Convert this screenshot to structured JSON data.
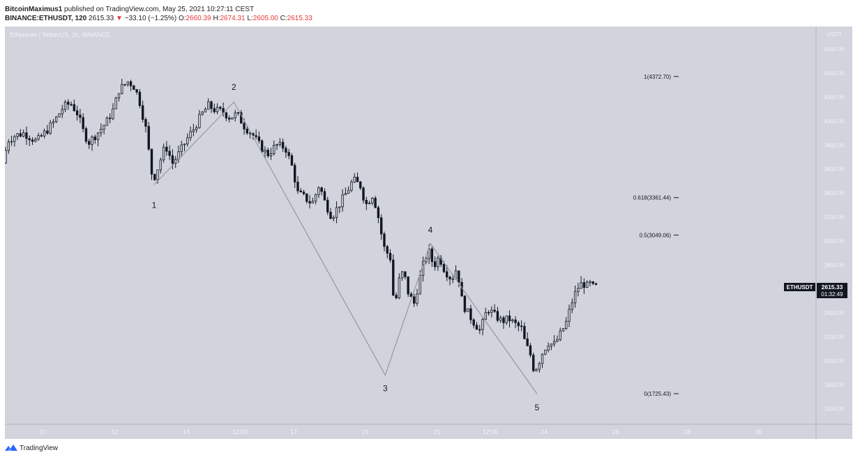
{
  "header": {
    "author": "BitcoinMaximus1",
    "published_text": "published on TradingView.com, May 25, 2021 10:27:11 CEST",
    "symbol": "BINANCE:ETHUSDT, 120",
    "last": "2615.33",
    "change_arrow": "▼",
    "change": "−33.10 (−1.25%)",
    "o_label": "O:",
    "o_value": "2660.39",
    "h_label": "H:",
    "h_value": "2674.31",
    "l_label": "L:",
    "l_value": "2605.00",
    "c_label": "C:",
    "c_value": "2615.33"
  },
  "chart_data": {
    "type": "candlestick",
    "pane_title": "Ethereum / TetherUS, 2h, BINANCE",
    "currency_label": "USDT",
    "y_ticks": [
      1600,
      1800,
      2000,
      2200,
      2400,
      2600,
      2800,
      3000,
      3200,
      3400,
      3600,
      3800,
      4000,
      4200,
      4400,
      4600
    ],
    "y_tick_labels": [
      "1600.00",
      "1800.00",
      "2000.00",
      "2200.00",
      "2400.00",
      "2600.00",
      "2800.00",
      "3000.00",
      "3200.00",
      "3400.00",
      "3600.00",
      "3800.00",
      "4000.00",
      "4200.00",
      "4400.00",
      "4600.00"
    ],
    "ylim": [
      1470,
      4790
    ],
    "x_ticks": [
      {
        "day": 10,
        "label": "10"
      },
      {
        "day": 12,
        "label": "12"
      },
      {
        "day": 14,
        "label": "14"
      },
      {
        "day": 15.5,
        "label": "12:00"
      },
      {
        "day": 17,
        "label": "17"
      },
      {
        "day": 19,
        "label": "19"
      },
      {
        "day": 21,
        "label": "21"
      },
      {
        "day": 22.5,
        "label": "12:00"
      },
      {
        "day": 24,
        "label": "24"
      },
      {
        "day": 26,
        "label": "26"
      },
      {
        "day": 28,
        "label": "28"
      },
      {
        "day": 30,
        "label": "30"
      }
    ],
    "xlim": [
      8.93,
      31.6
    ],
    "price_path": [
      [
        8.95,
        3650
      ],
      [
        9.1,
        3840
      ],
      [
        9.3,
        3880
      ],
      [
        9.55,
        3900
      ],
      [
        9.75,
        3860
      ],
      [
        9.9,
        3830
      ],
      [
        10.15,
        3910
      ],
      [
        10.4,
        4000
      ],
      [
        10.65,
        4120
      ],
      [
        10.85,
        4150
      ],
      [
        11.05,
        4060
      ],
      [
        11.2,
        3920
      ],
      [
        11.35,
        3820
      ],
      [
        11.6,
        3900
      ],
      [
        11.85,
        3990
      ],
      [
        12.05,
        4100
      ],
      [
        12.2,
        4260
      ],
      [
        12.45,
        4330
      ],
      [
        12.6,
        4300
      ],
      [
        12.75,
        4200
      ],
      [
        12.95,
        3940
      ],
      [
        13.1,
        3600
      ],
      [
        13.15,
        3500
      ],
      [
        13.3,
        3620
      ],
      [
        13.5,
        3800
      ],
      [
        13.7,
        3650
      ],
      [
        13.9,
        3740
      ],
      [
        14.1,
        3850
      ],
      [
        14.3,
        3940
      ],
      [
        14.5,
        4050
      ],
      [
        14.7,
        4130
      ],
      [
        14.9,
        4090
      ],
      [
        15.1,
        4080
      ],
      [
        15.3,
        4030
      ],
      [
        15.5,
        4060
      ],
      [
        15.7,
        3960
      ],
      [
        15.95,
        3880
      ],
      [
        16.15,
        3790
      ],
      [
        16.35,
        3720
      ],
      [
        16.6,
        3800
      ],
      [
        16.85,
        3780
      ],
      [
        17.05,
        3610
      ],
      [
        17.2,
        3400
      ],
      [
        17.4,
        3360
      ],
      [
        17.6,
        3310
      ],
      [
        17.8,
        3470
      ],
      [
        17.95,
        3330
      ],
      [
        18.15,
        3200
      ],
      [
        18.35,
        3300
      ],
      [
        18.55,
        3400
      ],
      [
        18.75,
        3510
      ],
      [
        18.95,
        3460
      ],
      [
        19.1,
        3300
      ],
      [
        19.3,
        3390
      ],
      [
        19.45,
        3200
      ],
      [
        19.6,
        2950
      ],
      [
        19.8,
        2850
      ],
      [
        19.9,
        2400
      ],
      [
        20.0,
        2650
      ],
      [
        20.15,
        2750
      ],
      [
        20.3,
        2550
      ],
      [
        20.45,
        2480
      ],
      [
        20.6,
        2680
      ],
      [
        20.75,
        2850
      ],
      [
        20.85,
        2920
      ],
      [
        21.0,
        2790
      ],
      [
        21.15,
        2870
      ],
      [
        21.3,
        2760
      ],
      [
        21.5,
        2680
      ],
      [
        21.65,
        2780
      ],
      [
        21.8,
        2480
      ],
      [
        21.95,
        2400
      ],
      [
        22.1,
        2330
      ],
      [
        22.3,
        2250
      ],
      [
        22.5,
        2440
      ],
      [
        22.7,
        2380
      ],
      [
        22.9,
        2330
      ],
      [
        23.1,
        2350
      ],
      [
        23.25,
        2310
      ],
      [
        23.45,
        2270
      ],
      [
        23.55,
        2150
      ],
      [
        23.7,
        2050
      ],
      [
        23.8,
        1920
      ],
      [
        23.9,
        1960
      ],
      [
        24.05,
        2080
      ],
      [
        24.2,
        2150
      ],
      [
        24.35,
        2130
      ],
      [
        24.5,
        2200
      ],
      [
        24.7,
        2320
      ],
      [
        24.85,
        2480
      ],
      [
        25.0,
        2600
      ],
      [
        25.15,
        2650
      ],
      [
        25.3,
        2620
      ],
      [
        25.4,
        2650
      ],
      [
        25.45,
        2615
      ]
    ],
    "wave_line": [
      [
        13.1,
        3470
      ],
      [
        15.33,
        4160
      ],
      [
        19.56,
        1880
      ],
      [
        20.82,
        2980
      ],
      [
        23.8,
        1725
      ]
    ],
    "wave_labels": [
      {
        "text": "1",
        "day": 13.1,
        "price": 3310,
        "above": false
      },
      {
        "text": "2",
        "day": 15.33,
        "price": 4260,
        "above": true
      },
      {
        "text": "3",
        "day": 19.56,
        "price": 1780,
        "above": false
      },
      {
        "text": "4",
        "day": 20.82,
        "price": 3070,
        "above": true
      },
      {
        "text": "5",
        "day": 23.8,
        "price": 1620,
        "above": false
      }
    ],
    "fib_levels": [
      {
        "ratio": "1",
        "price": 4372.7,
        "label": "1(4372.70)"
      },
      {
        "ratio": "0.618",
        "price": 3361.44,
        "label": "0.618(3361.44)"
      },
      {
        "ratio": "0.5",
        "price": 3049.06,
        "label": "0.5(3049.06)"
      },
      {
        "ratio": "0",
        "price": 1725.43,
        "label": "0(1725.43)"
      }
    ],
    "last_price": {
      "symbol": "ETHUSDT",
      "price": 2615.33,
      "price_label": "2615.33",
      "countdown": "01:32:49"
    },
    "colors": {
      "pane_bg": "#d1d4dc",
      "axis_bg": "#d1d4dc",
      "candle": "#131722",
      "wave": "#9598a1",
      "label_bg": "#131722"
    }
  },
  "footer": {
    "brand": "TradingView"
  }
}
